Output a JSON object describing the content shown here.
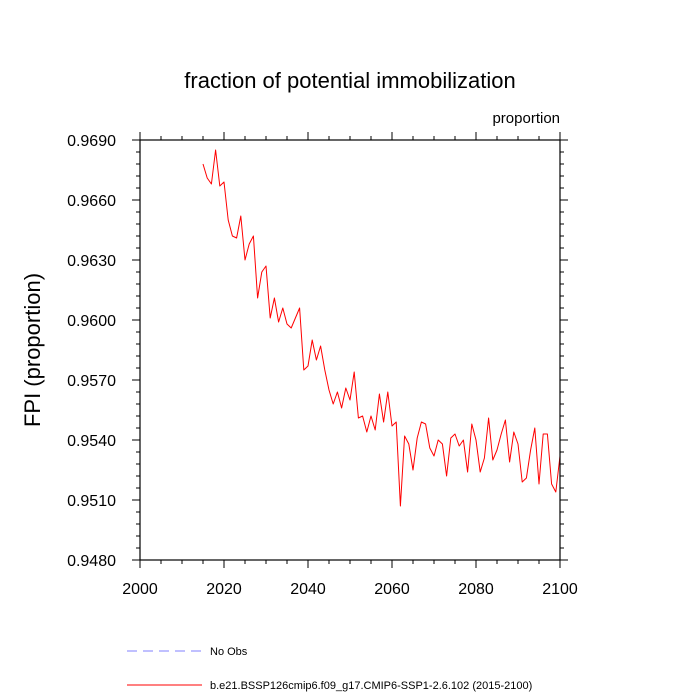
{
  "chart_data": {
    "type": "line",
    "title": "fraction of potential immobilization",
    "units_label": "proportion",
    "ylabel": "FPI  (proportion)",
    "xlabel": "",
    "xlim": [
      2000,
      2100
    ],
    "ylim": [
      0.948,
      0.969
    ],
    "x_ticks": [
      2000,
      2020,
      2040,
      2060,
      2080,
      2100
    ],
    "x_tick_labels": [
      "2000",
      "2020",
      "2040",
      "2060",
      "2080",
      "2100"
    ],
    "y_ticks": [
      0.948,
      0.951,
      0.954,
      0.957,
      0.96,
      0.963,
      0.966,
      0.969
    ],
    "y_tick_labels": [
      "0.9480",
      "0.9510",
      "0.9540",
      "0.9570",
      "0.9600",
      "0.9630",
      "0.9660",
      "0.9690"
    ],
    "series": [
      {
        "name": "b.e21.BSSP126cmip6.f09_g17.CMIP6-SSP1-2.6.102 (2015-2100)",
        "color": "#ff0000",
        "x": [
          2015,
          2016,
          2017,
          2018,
          2019,
          2020,
          2021,
          2022,
          2023,
          2024,
          2025,
          2026,
          2027,
          2028,
          2029,
          2030,
          2031,
          2032,
          2033,
          2034,
          2035,
          2036,
          2037,
          2038,
          2039,
          2040,
          2041,
          2042,
          2043,
          2044,
          2045,
          2046,
          2047,
          2048,
          2049,
          2050,
          2051,
          2052,
          2053,
          2054,
          2055,
          2056,
          2057,
          2058,
          2059,
          2060,
          2061,
          2062,
          2063,
          2064,
          2065,
          2066,
          2067,
          2068,
          2069,
          2070,
          2071,
          2072,
          2073,
          2074,
          2075,
          2076,
          2077,
          2078,
          2079,
          2080,
          2081,
          2082,
          2083,
          2084,
          2085,
          2086,
          2087,
          2088,
          2089,
          2090,
          2091,
          2092,
          2093,
          2094,
          2095,
          2096,
          2097,
          2098,
          2099,
          2100
        ],
        "values": [
          0.9678,
          0.9671,
          0.9668,
          0.9685,
          0.9667,
          0.9669,
          0.965,
          0.9642,
          0.9641,
          0.9652,
          0.963,
          0.9638,
          0.9642,
          0.9611,
          0.9624,
          0.9627,
          0.9601,
          0.9611,
          0.9599,
          0.9606,
          0.9598,
          0.9596,
          0.9601,
          0.9606,
          0.9575,
          0.9577,
          0.959,
          0.958,
          0.9587,
          0.9575,
          0.9565,
          0.9558,
          0.9564,
          0.9556,
          0.9566,
          0.956,
          0.9574,
          0.9551,
          0.9552,
          0.9544,
          0.9552,
          0.9545,
          0.9563,
          0.9549,
          0.9564,
          0.9547,
          0.9549,
          0.9507,
          0.9542,
          0.9538,
          0.9525,
          0.9541,
          0.9549,
          0.9548,
          0.9536,
          0.9532,
          0.954,
          0.9538,
          0.9522,
          0.9541,
          0.9543,
          0.9537,
          0.954,
          0.9524,
          0.9548,
          0.954,
          0.9524,
          0.9531,
          0.9551,
          0.953,
          0.9535,
          0.9543,
          0.955,
          0.9529,
          0.9544,
          0.9538,
          0.9519,
          0.9521,
          0.9535,
          0.9546,
          0.9518,
          0.9543,
          0.9543,
          0.9518,
          0.9514,
          0.9532
        ]
      }
    ],
    "legend": [
      {
        "label": "No Obs",
        "color": "#8080ff",
        "style": "dashed"
      },
      {
        "label": "b.e21.BSSP126cmip6.f09_g17.CMIP6-SSP1-2.6.102 (2015-2100)",
        "color": "#ff0000",
        "style": "solid"
      }
    ],
    "legend_position": "bottom-left",
    "grid": false
  }
}
